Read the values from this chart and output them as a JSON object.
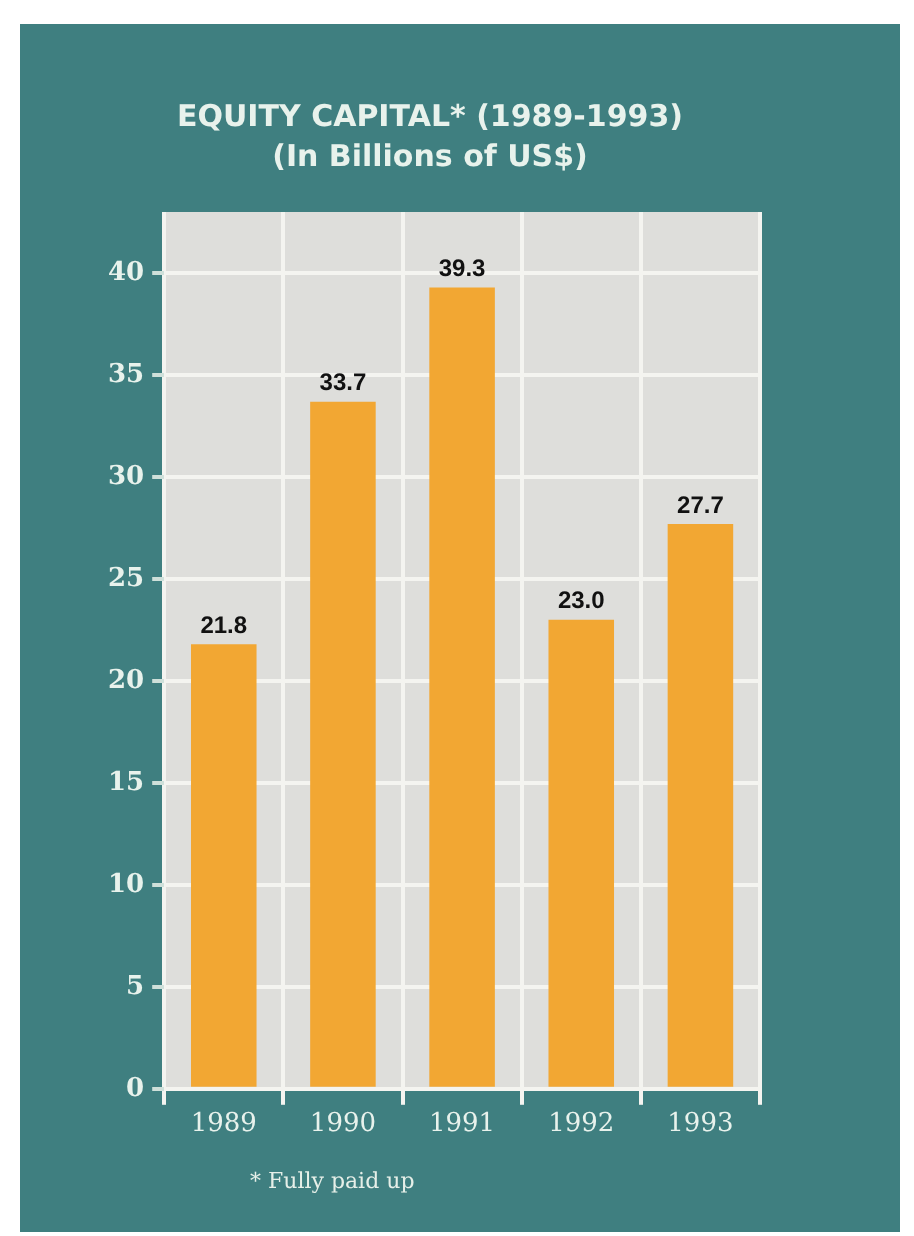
{
  "chart_data": {
    "type": "bar",
    "title": "EQUITY CAPITAL* (1989-1993)",
    "subtitle": "(In Billions of US$)",
    "categories": [
      "1989",
      "1990",
      "1991",
      "1992",
      "1993"
    ],
    "values": [
      21.8,
      33.7,
      39.3,
      23.0,
      27.7
    ],
    "color": "#f2a733",
    "value_labels": [
      "21.8",
      "33.7",
      "39.3",
      "23.0",
      "27.7"
    ],
    "ylim": [
      0,
      43
    ],
    "yticks": [
      0,
      5,
      10,
      15,
      20,
      25,
      30,
      35,
      40
    ],
    "grid": true,
    "legend": false,
    "annotations": [
      "* Fully paid up"
    ]
  }
}
